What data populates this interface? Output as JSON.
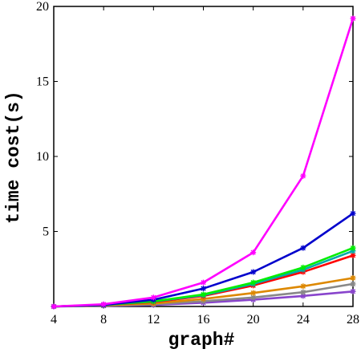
{
  "chart_data": {
    "type": "line",
    "title": "",
    "xlabel": "graph#",
    "ylabel": "time cost(s)",
    "xlim": [
      4,
      28
    ],
    "ylim": [
      0,
      20
    ],
    "xticks": [
      4,
      8,
      12,
      16,
      20,
      24,
      28
    ],
    "yticks": [
      5,
      10,
      15,
      20
    ],
    "grid": false,
    "legend": "none",
    "x": [
      4,
      8,
      12,
      16,
      20,
      24,
      28
    ],
    "series": [
      {
        "color": "#ff00ff",
        "values": [
          0.0,
          0.15,
          0.6,
          1.6,
          3.6,
          8.7,
          19.2
        ]
      },
      {
        "color": "#0000cc",
        "values": [
          0.0,
          0.1,
          0.45,
          1.2,
          2.3,
          3.9,
          6.2
        ]
      },
      {
        "color": "#00ee00",
        "values": [
          0.0,
          0.1,
          0.35,
          0.8,
          1.6,
          2.6,
          3.9
        ]
      },
      {
        "color": "#00aaaa",
        "values": [
          0.0,
          0.1,
          0.33,
          0.75,
          1.5,
          2.45,
          3.7
        ]
      },
      {
        "color": "#ff0000",
        "values": [
          0.0,
          0.1,
          0.3,
          0.7,
          1.4,
          2.3,
          3.4
        ]
      },
      {
        "color": "#dd8800",
        "values": [
          0.0,
          0.08,
          0.2,
          0.5,
          0.9,
          1.35,
          1.9
        ]
      },
      {
        "color": "#888888",
        "values": [
          0.0,
          0.05,
          0.15,
          0.35,
          0.6,
          0.95,
          1.5
        ]
      },
      {
        "color": "#8844cc",
        "values": [
          0.0,
          0.04,
          0.1,
          0.25,
          0.45,
          0.7,
          1.0
        ]
      }
    ]
  }
}
